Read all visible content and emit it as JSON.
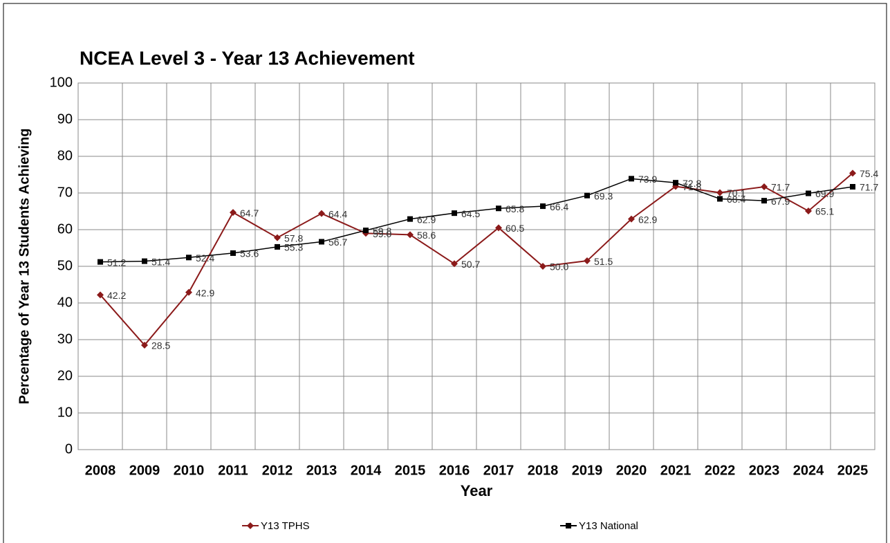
{
  "chart_data": {
    "type": "line",
    "title": "NCEA Level 3 - Year 13 Achievement",
    "xlabel": "Year",
    "ylabel": "Percentage of Year 13 Students Achieving",
    "categories": [
      "2008",
      "2009",
      "2010",
      "2011",
      "2012",
      "2013",
      "2014",
      "2015",
      "2016",
      "2017",
      "2018",
      "2019",
      "2020",
      "2021",
      "2022",
      "2023",
      "2024",
      "2025"
    ],
    "series": [
      {
        "name": "Y13 TPHS",
        "color": "#8b1a1a",
        "marker": "diamond",
        "values": [
          42.2,
          28.5,
          42.9,
          64.7,
          57.8,
          64.4,
          59.0,
          58.6,
          50.7,
          60.5,
          50.0,
          51.5,
          62.9,
          71.8,
          70.1,
          71.7,
          65.1,
          75.4
        ],
        "value_labels": [
          "42.2",
          "28.5",
          "42.9",
          "64.7",
          "57.8",
          "64.4",
          "59.0",
          "58.6",
          "50.7",
          "60.5",
          "50.0",
          "51.5",
          "62.9",
          "71.8",
          "70.1",
          "71.7",
          "65.1",
          "75.4"
        ]
      },
      {
        "name": "Y13 National",
        "color": "#000000",
        "marker": "square",
        "values": [
          51.2,
          51.4,
          52.4,
          53.6,
          55.3,
          56.7,
          59.8,
          62.9,
          64.5,
          65.8,
          66.4,
          69.3,
          73.9,
          72.8,
          68.4,
          67.9,
          69.9,
          71.7
        ],
        "value_labels": [
          "51.2",
          "51.4",
          "52.4",
          "53.6",
          "55.3",
          "56.7",
          "59.8",
          "62.9",
          "64.5",
          "65.8",
          "66.4",
          "69.3",
          "73.9",
          "72.8",
          "68.4",
          "67.9",
          "69.9",
          "71.7"
        ]
      }
    ],
    "ylim": [
      0,
      100
    ],
    "yticks": [
      0,
      10,
      20,
      30,
      40,
      50,
      60,
      70,
      80,
      90,
      100
    ],
    "grid": true,
    "legend": "bottom"
  }
}
